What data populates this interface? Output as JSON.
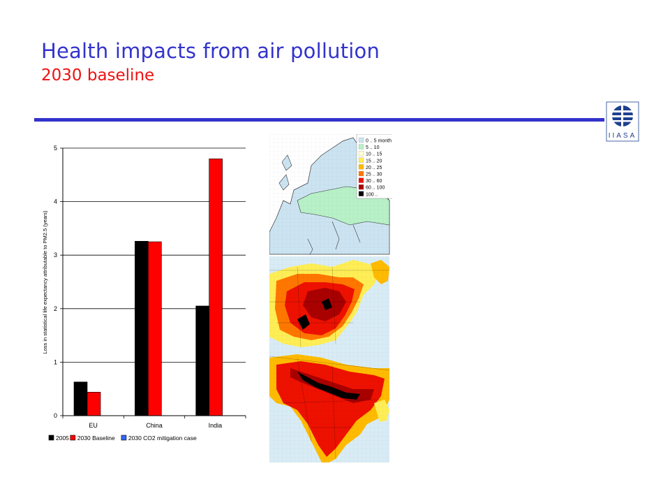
{
  "slide": {
    "title": "Health impacts from air pollution",
    "subtitle": "2030 baseline",
    "title_color": "#3333cc",
    "subtitle_color": "#ee1111",
    "rule_color": "#3333cc"
  },
  "logo": {
    "icon": "iiasa-globe-icon",
    "text": "IIASA",
    "color": "#1f3f8f"
  },
  "chart_data": {
    "type": "bar",
    "title": "",
    "xlabel": "",
    "ylabel": "Loss in statistical life expectancy attributable to PM2.5 (years)",
    "categories": [
      "EU",
      "China",
      "India"
    ],
    "ylim": [
      0,
      5
    ],
    "yticks": [
      0,
      1,
      2,
      3,
      4,
      5
    ],
    "grid": true,
    "legend_position": "bottom",
    "series": [
      {
        "name": "2005",
        "color": "#000000",
        "values": [
          0.63,
          3.26,
          2.05
        ]
      },
      {
        "name": "2030 Baseline",
        "color": "#ff0000",
        "values": [
          0.44,
          3.25,
          4.8
        ]
      },
      {
        "name": "2030 CO2 mitigation case",
        "color": "#3366ff",
        "values": [
          null,
          null,
          null
        ]
      }
    ]
  },
  "maps": {
    "legend": {
      "items": [
        {
          "label": "0 .. 5 month",
          "color": "#cce4f2"
        },
        {
          "label": "5 .. 10",
          "color": "#b8f0c8"
        },
        {
          "label": "10 .. 15",
          "color": "#ffffcc"
        },
        {
          "label": "15 .. 20",
          "color": "#ffee55"
        },
        {
          "label": "20 .. 25",
          "color": "#ffbb00"
        },
        {
          "label": "25 .. 30",
          "color": "#ff7700"
        },
        {
          "label": "30 .. 60",
          "color": "#ee1100"
        },
        {
          "label": "60 .. 100",
          "color": "#aa0000"
        },
        {
          "label": "100 ..",
          "color": "#000000"
        }
      ]
    },
    "panels": [
      {
        "region": "Europe"
      },
      {
        "region": "China"
      },
      {
        "region": "India"
      }
    ]
  }
}
